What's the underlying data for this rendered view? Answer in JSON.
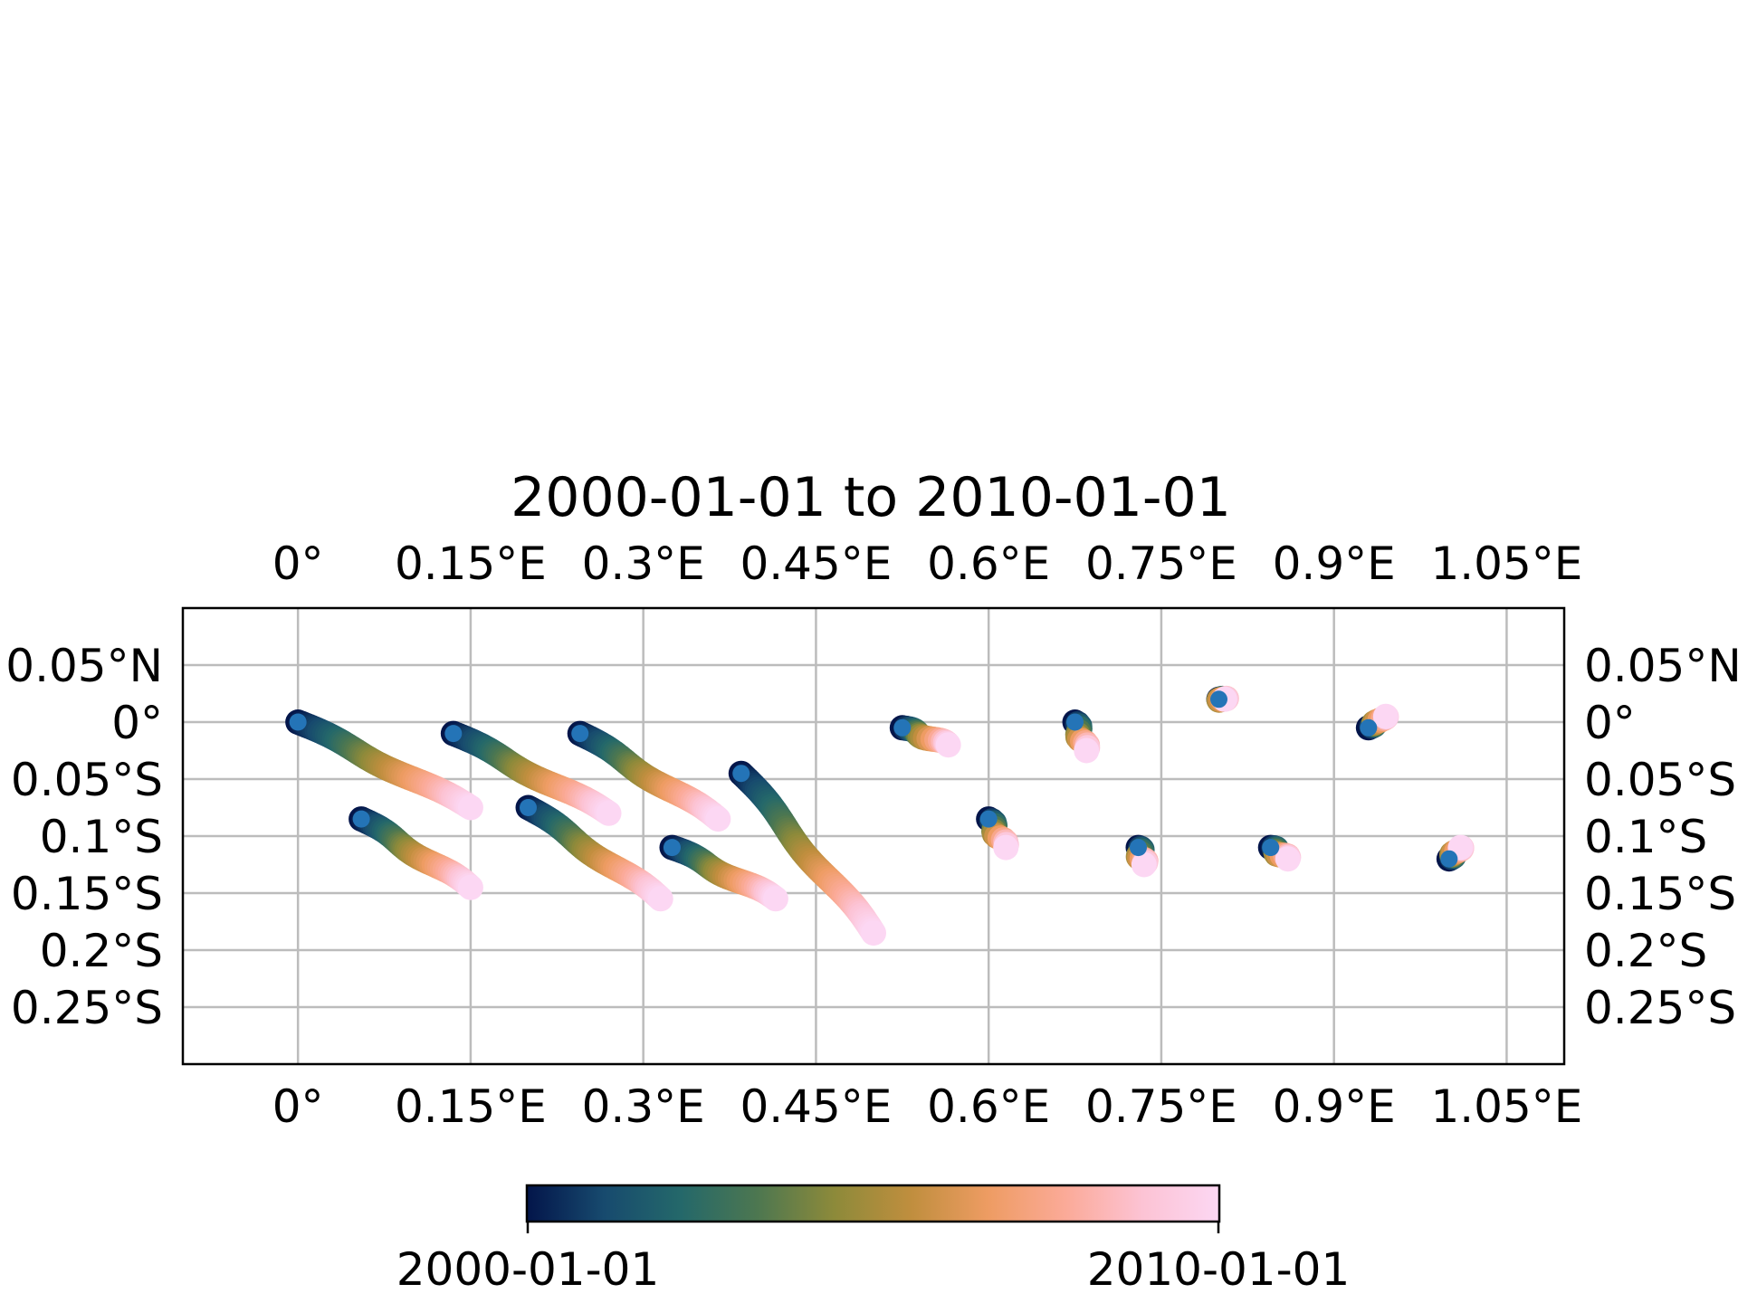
{
  "chart_data": {
    "type": "scatter",
    "title": "2000-01-01 to 2010-01-01",
    "x_ticks": [
      {
        "value": 0.0,
        "label": "0°"
      },
      {
        "value": 0.15,
        "label": "0.15°E"
      },
      {
        "value": 0.3,
        "label": "0.3°E"
      },
      {
        "value": 0.45,
        "label": "0.45°E"
      },
      {
        "value": 0.6,
        "label": "0.6°E"
      },
      {
        "value": 0.75,
        "label": "0.75°E"
      },
      {
        "value": 0.9,
        "label": "0.9°E"
      },
      {
        "value": 1.05,
        "label": "1.05°E"
      }
    ],
    "y_ticks": [
      {
        "value": 0.05,
        "label": "0.05°N"
      },
      {
        "value": 0.0,
        "label": "0°"
      },
      {
        "value": -0.05,
        "label": "0.05°S"
      },
      {
        "value": -0.1,
        "label": "0.1°S"
      },
      {
        "value": -0.15,
        "label": "0.15°S"
      },
      {
        "value": -0.2,
        "label": "0.2°S"
      },
      {
        "value": -0.25,
        "label": "0.25°S"
      }
    ],
    "xlim": [
      -0.1,
      1.1
    ],
    "ylim": [
      -0.3,
      0.1
    ],
    "grid": true,
    "colormap": [
      "#03154a",
      "#174a6e",
      "#24686a",
      "#4d7750",
      "#8d8a3a",
      "#c08e3e",
      "#ee9c63",
      "#fbaa98",
      "#fcc3d4",
      "#fcd7f3"
    ],
    "start_marker_color": "#2474b7",
    "colorbar": {
      "min_label": "2000-01-01",
      "max_label": "2010-01-01"
    },
    "tracks": [
      {
        "start": [
          0.0,
          0.0
        ],
        "end": [
          0.15,
          -0.075
        ]
      },
      {
        "start": [
          0.135,
          -0.01
        ],
        "end": [
          0.27,
          -0.08
        ]
      },
      {
        "start": [
          0.245,
          -0.01
        ],
        "end": [
          0.365,
          -0.085
        ]
      },
      {
        "start": [
          0.055,
          -0.085
        ],
        "end": [
          0.15,
          -0.145
        ]
      },
      {
        "start": [
          0.2,
          -0.075
        ],
        "end": [
          0.315,
          -0.155
        ]
      },
      {
        "start": [
          0.325,
          -0.11
        ],
        "end": [
          0.415,
          -0.155
        ]
      },
      {
        "start": [
          0.385,
          -0.045
        ],
        "end": [
          0.5,
          -0.185
        ]
      },
      {
        "start": [
          0.525,
          -0.005
        ],
        "end": [
          0.565,
          -0.02
        ]
      },
      {
        "start": [
          0.675,
          0.0
        ],
        "end": [
          0.685,
          -0.025
        ]
      },
      {
        "start": [
          0.8,
          0.02
        ],
        "end": [
          0.805,
          0.02
        ]
      },
      {
        "start": [
          0.93,
          -0.005
        ],
        "end": [
          0.945,
          0.005
        ]
      },
      {
        "start": [
          0.6,
          -0.085
        ],
        "end": [
          0.615,
          -0.11
        ]
      },
      {
        "start": [
          0.73,
          -0.11
        ],
        "end": [
          0.735,
          -0.125
        ]
      },
      {
        "start": [
          0.845,
          -0.11
        ],
        "end": [
          0.86,
          -0.12
        ]
      },
      {
        "start": [
          1.0,
          -0.12
        ],
        "end": [
          1.01,
          -0.11
        ]
      }
    ]
  }
}
